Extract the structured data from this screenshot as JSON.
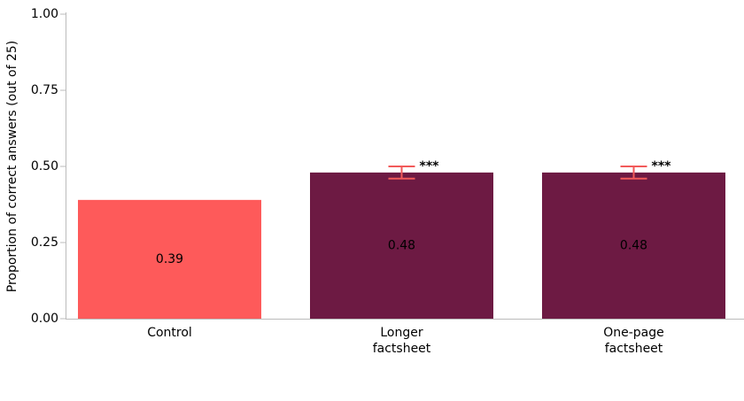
{
  "chart_data": {
    "type": "bar",
    "y_label": "Proportion of correct answers (out of 25)",
    "categories": [
      "Control",
      "Longer factsheet",
      "One-page factsheet"
    ],
    "values": [
      0.39,
      0.48,
      0.48
    ],
    "errors": [
      null,
      0.02,
      0.02
    ],
    "significance_labels": [
      null,
      "***",
      "***"
    ],
    "colors": [
      "#fe5a5a",
      "#6d1a43",
      "#6d1a43"
    ],
    "error_color": "#f25a5a",
    "ylim": [
      0,
      1
    ],
    "yticks": [
      {
        "value": 0,
        "label": "0.00"
      },
      {
        "value": 0.25,
        "label": "0.25"
      },
      {
        "value": 0.5,
        "label": "0.50"
      },
      {
        "value": 0.75,
        "label": "0.75"
      },
      {
        "value": 1,
        "label": "1.00"
      }
    ],
    "grid": false
  }
}
